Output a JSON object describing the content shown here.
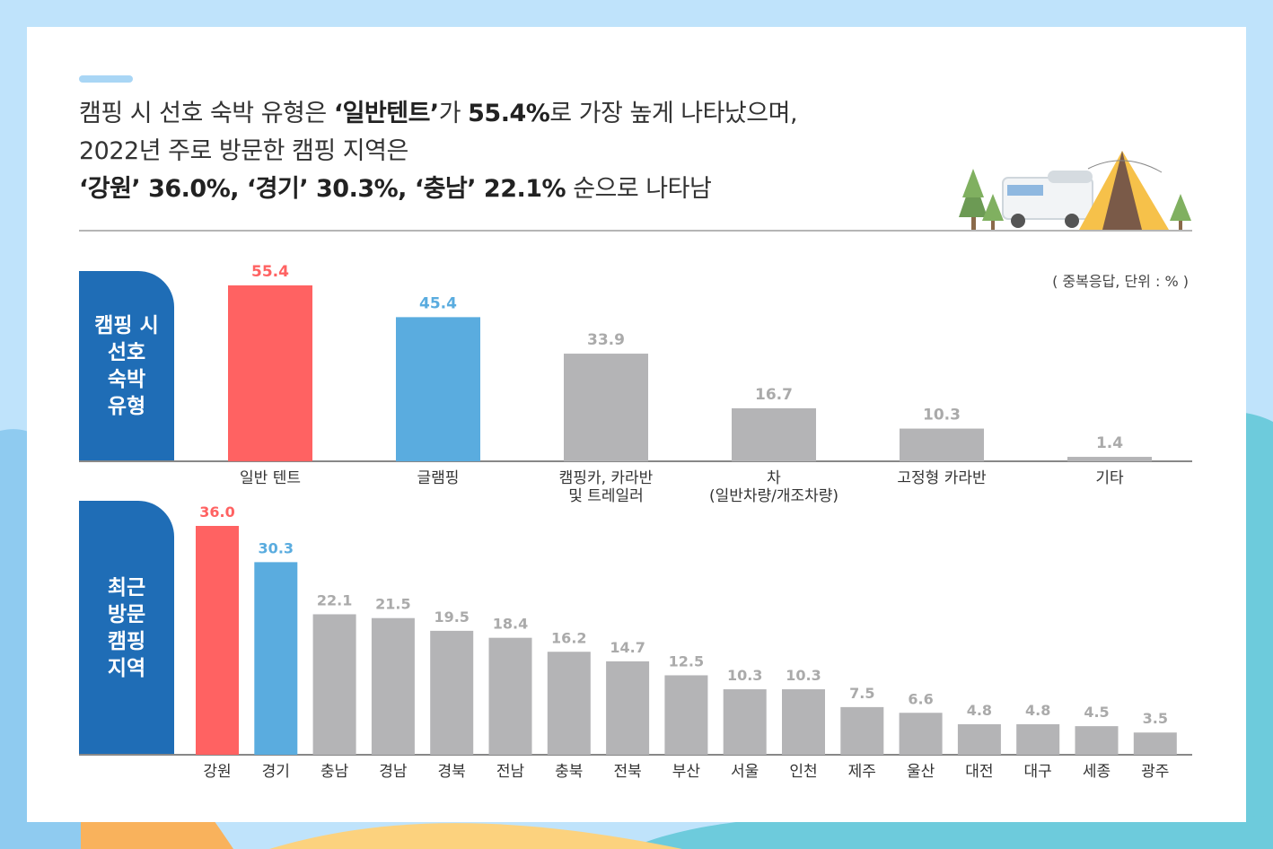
{
  "headline": {
    "line1_a": "캠핑 시 선호 숙박 유형은 ",
    "line1_b": "‘일반텐트’",
    "line1_c": "가 ",
    "line1_d": "55.4%",
    "line1_e": "로 가장 높게 나타났으며,",
    "line2": "2022년 주로 방문한 캠핑 지역은",
    "line3_a": "‘강원’ 36.0%, ‘경기’ 30.3%, ‘충남’ 22.1%",
    "line3_b": " 순으로 나타남"
  },
  "unit_note": "( 중복응답, 단위 : % )",
  "colors": {
    "highlight_1": "#ff6262",
    "highlight_2": "#5aacdf",
    "bar_default": "#b4b4b6",
    "label_box": "#1f6db6"
  },
  "chart_data": [
    {
      "type": "bar",
      "side_label": [
        "캠핑 시",
        "선호",
        "숙박",
        "유형"
      ],
      "categories": [
        [
          "일반 텐트"
        ],
        [
          "글램핑"
        ],
        [
          "캠핑카, 카라반",
          "및 트레일러"
        ],
        [
          "차",
          "(일반차량/개조차량)"
        ],
        [
          "고정형 카라반"
        ],
        [
          "기타"
        ]
      ],
      "values": [
        55.4,
        45.4,
        33.9,
        16.7,
        10.3,
        1.4
      ],
      "value_labels": [
        "55.4",
        "45.4",
        "33.9",
        "16.7",
        "10.3",
        "1.4"
      ],
      "ylim": [
        0,
        55.4
      ],
      "grid": false
    },
    {
      "type": "bar",
      "side_label": [
        "최근",
        "방문",
        "캠핑",
        "지역"
      ],
      "categories": [
        [
          "강원"
        ],
        [
          "경기"
        ],
        [
          "충남"
        ],
        [
          "경남"
        ],
        [
          "경북"
        ],
        [
          "전남"
        ],
        [
          "충북"
        ],
        [
          "전북"
        ],
        [
          "부산"
        ],
        [
          "서울"
        ],
        [
          "인천"
        ],
        [
          "제주"
        ],
        [
          "울산"
        ],
        [
          "대전"
        ],
        [
          "대구"
        ],
        [
          "세종"
        ],
        [
          "광주"
        ]
      ],
      "values": [
        36.0,
        30.3,
        22.1,
        21.5,
        19.5,
        18.4,
        16.2,
        14.7,
        12.5,
        10.3,
        10.3,
        7.5,
        6.6,
        4.8,
        4.8,
        4.5,
        3.5
      ],
      "value_labels": [
        "36.0",
        "30.3",
        "22.1",
        "21.5",
        "19.5",
        "18.4",
        "16.2",
        "14.7",
        "12.5",
        "10.3",
        "10.3",
        "7.5",
        "6.6",
        "4.8",
        "4.8",
        "4.5",
        "3.5"
      ],
      "ylim": [
        0,
        36.0
      ],
      "grid": false
    }
  ]
}
